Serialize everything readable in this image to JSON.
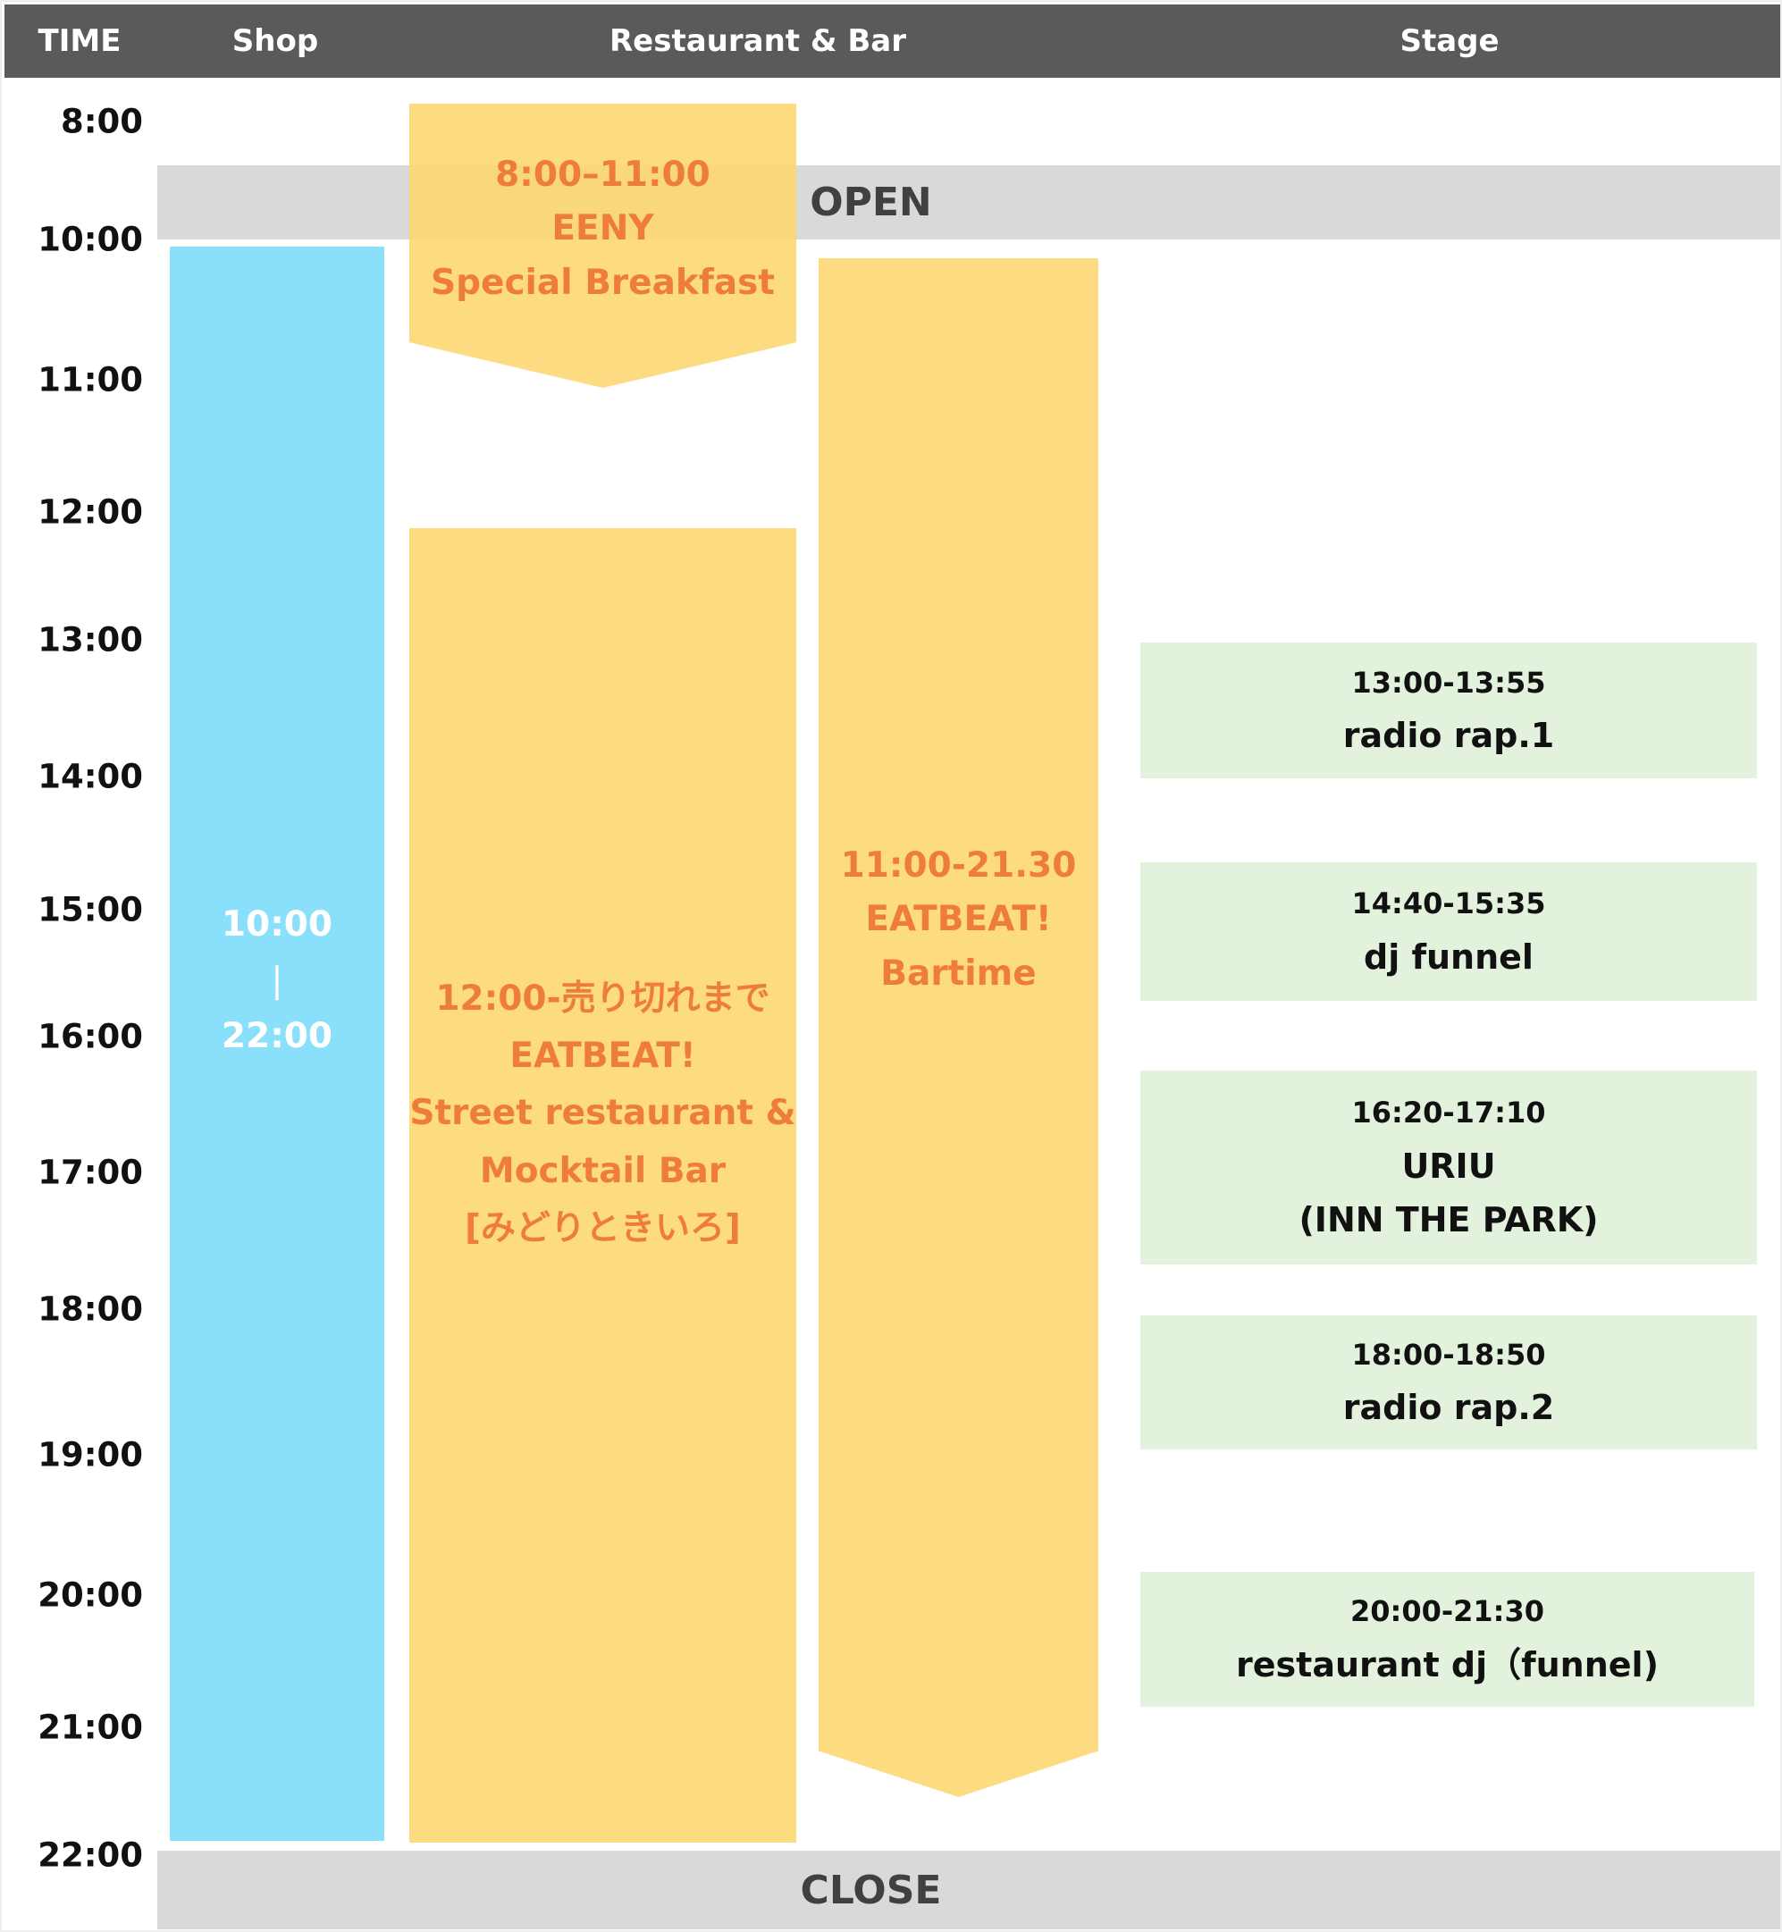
{
  "header": {
    "time": "TIME",
    "shop": "Shop",
    "restaurant": "Restaurant & Bar",
    "stage": "Stage"
  },
  "times": [
    "8:00",
    "10:00",
    "11:00",
    "12:00",
    "13:00",
    "14:00",
    "15:00",
    "16:00",
    "17:00",
    "18:00",
    "19:00",
    "20:00",
    "21:00",
    "22:00"
  ],
  "open_label": "OPEN",
  "close_label": "CLOSE",
  "shop": {
    "start": "10:00",
    "sep": "|",
    "end": "22:00"
  },
  "breakfast": {
    "time": "8:00–11:00",
    "name": "EENY",
    "title": "Special Breakfast"
  },
  "street": {
    "time": "12:00-売り切れまで",
    "name": "EATBEAT!",
    "line1": "Street restaurant &",
    "line2": "Mocktail Bar",
    "line3": "[みどりときいろ]"
  },
  "bartime": {
    "time": "11:00-21.30",
    "name": "EATBEAT!",
    "title": "Bartime"
  },
  "stage": [
    {
      "time": "13:00-13:55",
      "title": "radio rap.1"
    },
    {
      "time": "14:40-15:35",
      "title": "dj funnel"
    },
    {
      "time": "16:20-17:10",
      "title": "URIU",
      "sub": "(INN THE PARK)"
    },
    {
      "time": "18:00-18:50",
      "title": "radio rap.2"
    },
    {
      "time": "20:00-21:30",
      "title": "restaurant dj（funnel)"
    }
  ],
  "colors": {
    "header": "#5a5a5a",
    "shop": "#8ae0fb",
    "food": "#fdd67a",
    "stage": "#e2f2dc",
    "text_orange": "#ee7d3b",
    "band": "#d9d9d9"
  }
}
